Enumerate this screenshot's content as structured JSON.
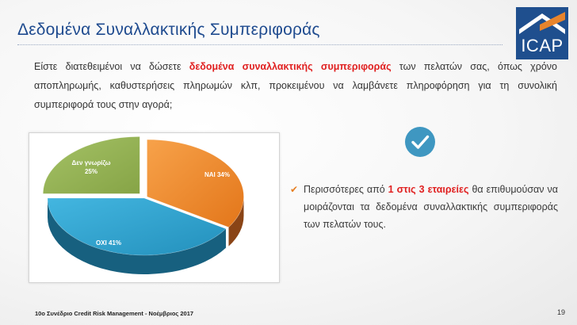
{
  "header": {
    "title": "Δεδομένα Συναλλακτικής Συμπεριφοράς",
    "logo_text": "ICAP"
  },
  "question": {
    "before": "Είστε διατεθειμένοι να δώσετε ",
    "highlight": "δεδομένα συναλλακτικής συμπεριφοράς",
    "after": " των πελατών σας, όπως χρόνο αποπληρωμής, καθυστερήσεις πληρωμών κλπ, προκειμένου να λαμβάνετε πληροφόρηση για τη συνολική συμπεριφορά τους στην αγορά;"
  },
  "chart_data": {
    "type": "pie",
    "title": "",
    "categories": [
      "ΝΑΙ",
      "ΟΧΙ",
      "Δεν γνωρίζω"
    ],
    "values": [
      34,
      41,
      25
    ],
    "unit": "%",
    "labels": [
      "ΝΑΙ 34%",
      "ΟΧΙ 41%",
      "Δεν γνωρίζω",
      "25%"
    ],
    "colors": [
      "#f08a24",
      "#2ea3cf",
      "#93b153"
    ],
    "legend": false
  },
  "finding": {
    "before": "Περισσότερες από ",
    "highlight": "1 στις 3 εταιρείες",
    "after": " θα επιθυμούσαν να μοιράζονται τα δεδομένα συναλλακτικής συμπεριφοράς των πελατών τους."
  },
  "footer": {
    "event": "10ο Συνέδριο Credit Risk Management - Νοέμβριος 2017",
    "page": "19"
  }
}
